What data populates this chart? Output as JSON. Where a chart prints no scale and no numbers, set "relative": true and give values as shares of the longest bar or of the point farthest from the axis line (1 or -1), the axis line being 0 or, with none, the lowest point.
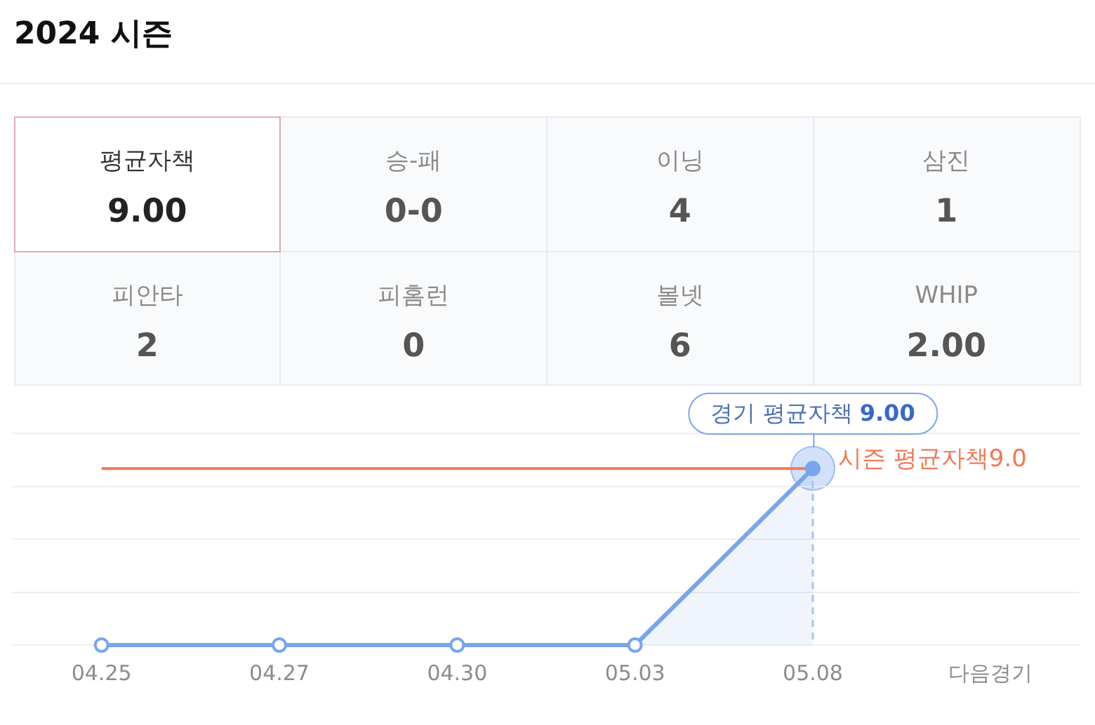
{
  "chart_data": [
    {
      "type": "other",
      "title": "2024 시즌",
      "categories": [
        "평균자책",
        "승-패",
        "이닝",
        "삼진",
        "피안타",
        "피홈런",
        "볼넷",
        "WHIP"
      ],
      "value_labels": [
        "9.00",
        "0-0",
        "4",
        "1",
        "2",
        "0",
        "6",
        "2.00"
      ],
      "colors": [
        "#ffffff",
        "#f9fafc",
        "#f9fafc",
        "#f9fafc",
        "#f9fafc",
        "#f9fafc",
        "#f9fafc",
        "#f9fafc"
      ]
    },
    {
      "type": "area",
      "relative": true,
      "categories": [
        "04.25",
        "04.27",
        "04.30",
        "05.03",
        "05.08",
        "다음경기"
      ],
      "values": [
        0,
        0,
        0,
        0,
        1,
        null
      ],
      "color": "#79a5ec",
      "tick_labels": "x",
      "grid": "y",
      "marker": "circle",
      "ref_lines": [
        {
          "axis": "y",
          "value": 1,
          "label": "시즌 평균자책9.0",
          "color": "#f07a56"
        },
        {
          "axis": "x",
          "value": "05.08",
          "color": "#a9c5f3",
          "line_style": "dashed"
        }
      ],
      "annotations": [
        {
          "text": "경기 평균자책 9.00",
          "x": "05.08",
          "y": 1
        }
      ]
    }
  ]
}
